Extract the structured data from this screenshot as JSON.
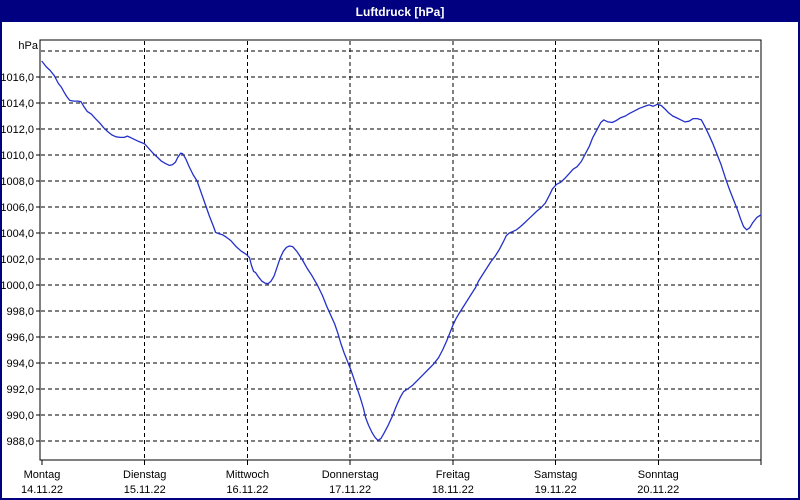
{
  "window": {
    "title": "Luftdruck [hPa]",
    "title_bar_color": "#000080",
    "border_color": "#000080",
    "background_color": "#ffffff"
  },
  "chart_data": {
    "type": "line",
    "title": "Luftdruck [hPa]",
    "unit_label": "hPa",
    "line_color": "#2431c8",
    "grid_color": "#000000",
    "text_color": "#000000",
    "grid_style": "dashed",
    "legend": "none",
    "x_axis": {
      "range_days": [
        0,
        7
      ],
      "days": [
        {
          "name": "Montag",
          "date": "14.11.22"
        },
        {
          "name": "Dienstag",
          "date": "15.11.22"
        },
        {
          "name": "Mittwoch",
          "date": "16.11.22"
        },
        {
          "name": "Donnerstag",
          "date": "17.11.22"
        },
        {
          "name": "Freitag",
          "date": "18.11.22"
        },
        {
          "name": "Samstag",
          "date": "19.11.22"
        },
        {
          "name": "Sonntag",
          "date": "20.11.22"
        }
      ]
    },
    "y_axis": {
      "ylim": [
        986.5,
        1018.9
      ],
      "tick_values": [
        988,
        990,
        992,
        994,
        996,
        998,
        1000,
        1002,
        1004,
        1006,
        1008,
        1010,
        1012,
        1014,
        1016
      ],
      "tick_labels": [
        "988,0",
        "990,0",
        "992,0",
        "994,0",
        "996,0",
        "998,0",
        "1000,0",
        "1002,0",
        "1004,0",
        "1006,0",
        "1008,0",
        "1010,0",
        "1012,0",
        "1014,0",
        "1016,0"
      ],
      "grid_values": [
        988,
        990,
        992,
        994,
        996,
        998,
        1000,
        1002,
        1004,
        1006,
        1008,
        1010,
        1012,
        1014,
        1016,
        1018
      ]
    },
    "series": [
      {
        "name": "Luftdruck",
        "points": [
          [
            0.0,
            1017.2
          ],
          [
            0.04,
            1016.8
          ],
          [
            0.08,
            1016.5
          ],
          [
            0.12,
            1016.1
          ],
          [
            0.16,
            1015.5
          ],
          [
            0.19,
            1015.2
          ],
          [
            0.21,
            1014.9
          ],
          [
            0.24,
            1014.5
          ],
          [
            0.27,
            1014.2
          ],
          [
            0.31,
            1014.15
          ],
          [
            0.35,
            1014.15
          ],
          [
            0.38,
            1014.1
          ],
          [
            0.41,
            1013.7
          ],
          [
            0.44,
            1013.35
          ],
          [
            0.48,
            1013.15
          ],
          [
            0.52,
            1012.8
          ],
          [
            0.57,
            1012.4
          ],
          [
            0.6,
            1012.1
          ],
          [
            0.64,
            1011.8
          ],
          [
            0.68,
            1011.55
          ],
          [
            0.72,
            1011.4
          ],
          [
            0.76,
            1011.35
          ],
          [
            0.8,
            1011.35
          ],
          [
            0.83,
            1011.45
          ],
          [
            0.86,
            1011.35
          ],
          [
            0.9,
            1011.2
          ],
          [
            0.94,
            1011.05
          ],
          [
            1.0,
            1010.85
          ],
          [
            1.04,
            1010.5
          ],
          [
            1.08,
            1010.15
          ],
          [
            1.12,
            1009.85
          ],
          [
            1.16,
            1009.55
          ],
          [
            1.2,
            1009.35
          ],
          [
            1.24,
            1009.2
          ],
          [
            1.27,
            1009.25
          ],
          [
            1.3,
            1009.45
          ],
          [
            1.32,
            1009.8
          ],
          [
            1.35,
            1010.15
          ],
          [
            1.37,
            1010.1
          ],
          [
            1.4,
            1009.7
          ],
          [
            1.43,
            1009.15
          ],
          [
            1.47,
            1008.5
          ],
          [
            1.51,
            1008.0
          ],
          [
            1.55,
            1007.1
          ],
          [
            1.59,
            1006.2
          ],
          [
            1.63,
            1005.3
          ],
          [
            1.67,
            1004.5
          ],
          [
            1.69,
            1004.05
          ],
          [
            1.72,
            1003.95
          ],
          [
            1.76,
            1003.85
          ],
          [
            1.8,
            1003.65
          ],
          [
            1.84,
            1003.4
          ],
          [
            1.89,
            1002.95
          ],
          [
            1.94,
            1002.6
          ],
          [
            1.99,
            1002.35
          ],
          [
            2.02,
            1002.1
          ],
          [
            2.04,
            1001.5
          ],
          [
            2.06,
            1001.05
          ],
          [
            2.08,
            1000.95
          ],
          [
            2.11,
            1000.6
          ],
          [
            2.14,
            1000.3
          ],
          [
            2.17,
            1000.15
          ],
          [
            2.2,
            1000.1
          ],
          [
            2.23,
            1000.3
          ],
          [
            2.26,
            1000.7
          ],
          [
            2.29,
            1001.4
          ],
          [
            2.32,
            1002.1
          ],
          [
            2.35,
            1002.6
          ],
          [
            2.38,
            1002.9
          ],
          [
            2.41,
            1003.0
          ],
          [
            2.44,
            1002.95
          ],
          [
            2.48,
            1002.6
          ],
          [
            2.53,
            1002.0
          ],
          [
            2.58,
            1001.3
          ],
          [
            2.63,
            1000.7
          ],
          [
            2.68,
            1000.0
          ],
          [
            2.73,
            999.2
          ],
          [
            2.77,
            998.4
          ],
          [
            2.81,
            997.7
          ],
          [
            2.85,
            997.0
          ],
          [
            2.88,
            996.3
          ],
          [
            2.91,
            995.5
          ],
          [
            2.94,
            994.8
          ],
          [
            2.97,
            994.2
          ],
          [
            3.01,
            993.4
          ],
          [
            3.04,
            992.7
          ],
          [
            3.07,
            992.0
          ],
          [
            3.1,
            991.3
          ],
          [
            3.13,
            990.5
          ],
          [
            3.15,
            989.8
          ],
          [
            3.18,
            989.2
          ],
          [
            3.21,
            988.7
          ],
          [
            3.24,
            988.3
          ],
          [
            3.27,
            988.05
          ],
          [
            3.3,
            988.2
          ],
          [
            3.33,
            988.6
          ],
          [
            3.37,
            989.2
          ],
          [
            3.41,
            989.9
          ],
          [
            3.45,
            990.7
          ],
          [
            3.49,
            991.4
          ],
          [
            3.52,
            991.8
          ],
          [
            3.56,
            992.0
          ],
          [
            3.61,
            992.3
          ],
          [
            3.66,
            992.7
          ],
          [
            3.71,
            993.1
          ],
          [
            3.76,
            993.5
          ],
          [
            3.81,
            993.9
          ],
          [
            3.86,
            994.4
          ],
          [
            3.9,
            995.0
          ],
          [
            3.94,
            995.7
          ],
          [
            3.97,
            996.3
          ],
          [
            4.0,
            996.9
          ],
          [
            4.03,
            997.4
          ],
          [
            4.06,
            997.8
          ],
          [
            4.1,
            998.3
          ],
          [
            4.14,
            998.8
          ],
          [
            4.18,
            999.3
          ],
          [
            4.22,
            999.8
          ],
          [
            4.25,
            1000.3
          ],
          [
            4.29,
            1000.8
          ],
          [
            4.33,
            1001.3
          ],
          [
            4.37,
            1001.8
          ],
          [
            4.41,
            1002.2
          ],
          [
            4.45,
            1002.7
          ],
          [
            4.49,
            1003.3
          ],
          [
            4.52,
            1003.8
          ],
          [
            4.55,
            1004.0
          ],
          [
            4.58,
            1004.1
          ],
          [
            4.62,
            1004.25
          ],
          [
            4.66,
            1004.5
          ],
          [
            4.7,
            1004.8
          ],
          [
            4.74,
            1005.1
          ],
          [
            4.78,
            1005.4
          ],
          [
            4.82,
            1005.7
          ],
          [
            4.86,
            1005.95
          ],
          [
            4.9,
            1006.3
          ],
          [
            4.94,
            1006.9
          ],
          [
            4.97,
            1007.4
          ],
          [
            5.01,
            1007.75
          ],
          [
            5.05,
            1007.9
          ],
          [
            5.09,
            1008.2
          ],
          [
            5.13,
            1008.55
          ],
          [
            5.17,
            1008.9
          ],
          [
            5.21,
            1009.1
          ],
          [
            5.25,
            1009.5
          ],
          [
            5.29,
            1010.1
          ],
          [
            5.33,
            1010.7
          ],
          [
            5.36,
            1011.3
          ],
          [
            5.4,
            1011.9
          ],
          [
            5.44,
            1012.5
          ],
          [
            5.47,
            1012.7
          ],
          [
            5.51,
            1012.55
          ],
          [
            5.55,
            1012.5
          ],
          [
            5.59,
            1012.65
          ],
          [
            5.63,
            1012.85
          ],
          [
            5.68,
            1013.0
          ],
          [
            5.72,
            1013.2
          ],
          [
            5.77,
            1013.4
          ],
          [
            5.82,
            1013.6
          ],
          [
            5.87,
            1013.75
          ],
          [
            5.91,
            1013.85
          ],
          [
            5.95,
            1013.75
          ],
          [
            5.99,
            1013.9
          ],
          [
            6.03,
            1013.8
          ],
          [
            6.07,
            1013.5
          ],
          [
            6.1,
            1013.25
          ],
          [
            6.14,
            1013.0
          ],
          [
            6.18,
            1012.85
          ],
          [
            6.22,
            1012.7
          ],
          [
            6.26,
            1012.55
          ],
          [
            6.3,
            1012.6
          ],
          [
            6.34,
            1012.8
          ],
          [
            6.38,
            1012.8
          ],
          [
            6.42,
            1012.7
          ],
          [
            6.45,
            1012.25
          ],
          [
            6.49,
            1011.6
          ],
          [
            6.53,
            1010.9
          ],
          [
            6.57,
            1010.1
          ],
          [
            6.61,
            1009.3
          ],
          [
            6.65,
            1008.3
          ],
          [
            6.69,
            1007.4
          ],
          [
            6.73,
            1006.6
          ],
          [
            6.77,
            1005.8
          ],
          [
            6.8,
            1005.1
          ],
          [
            6.83,
            1004.5
          ],
          [
            6.86,
            1004.25
          ],
          [
            6.89,
            1004.4
          ],
          [
            6.92,
            1004.8
          ],
          [
            6.96,
            1005.2
          ],
          [
            7.0,
            1005.4
          ]
        ]
      }
    ]
  }
}
